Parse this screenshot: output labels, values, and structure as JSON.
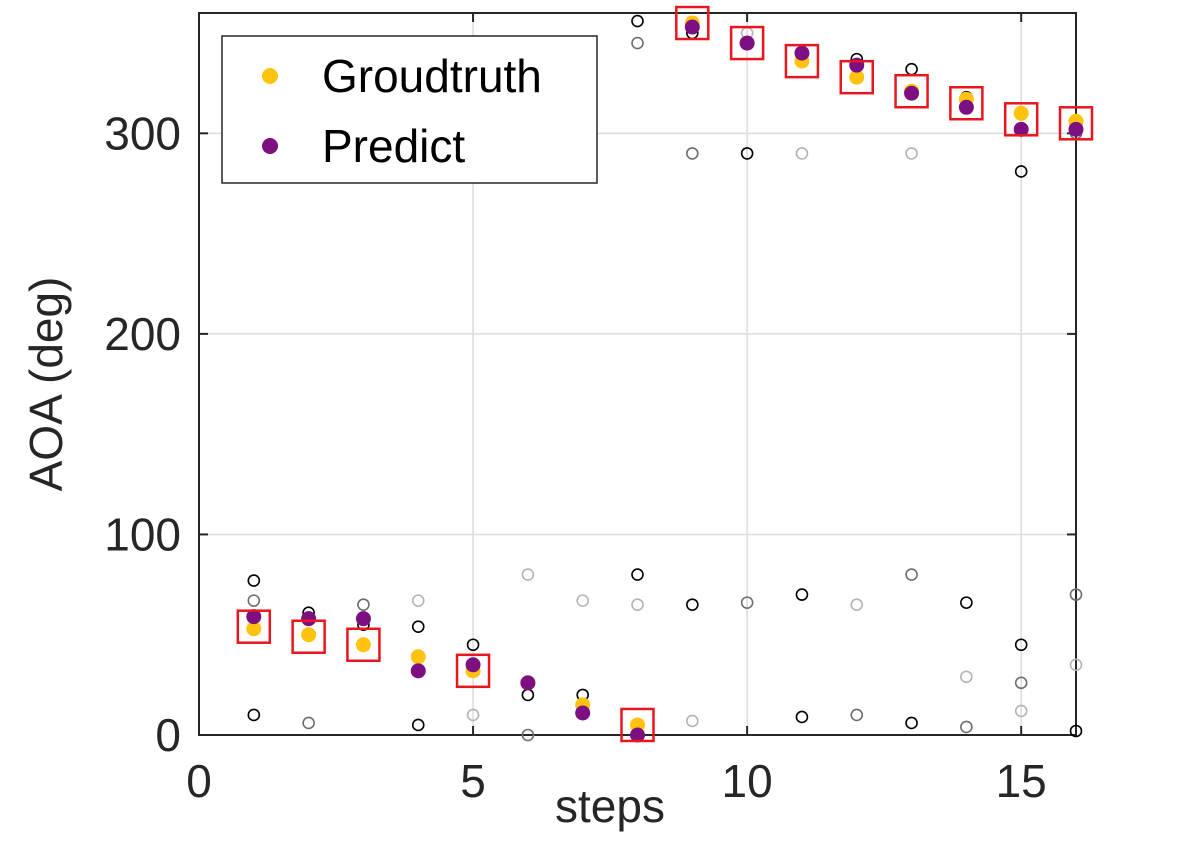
{
  "chart_data": {
    "type": "scatter",
    "xlabel": "steps",
    "ylabel": "AOA (deg)",
    "xlim": [
      0,
      16
    ],
    "ylim": [
      0,
      360
    ],
    "xticks": [
      0,
      5,
      10,
      15
    ],
    "yticks": [
      0,
      100,
      200,
      300
    ],
    "x_tick_labels": [
      "0",
      "5",
      "10",
      "15"
    ],
    "y_tick_labels": [
      "0",
      "100",
      "200",
      "300"
    ],
    "grid": true,
    "legend": {
      "position": "top-left",
      "entries": [
        {
          "label": "Groudtruth",
          "color": "#FFC20E"
        },
        {
          "label": "Predict",
          "color": "#7E0F80"
        }
      ]
    },
    "series": [
      {
        "name": "Groudtruth",
        "marker": "filled-circle",
        "color": "#FFC20E",
        "x": [
          1,
          2,
          3,
          4,
          5,
          6,
          7,
          8,
          9,
          10,
          11,
          12,
          13,
          14,
          15,
          16
        ],
        "y": [
          53,
          50,
          45,
          39,
          32,
          26,
          15,
          5,
          355,
          345,
          336,
          328,
          321,
          317,
          310,
          306
        ]
      },
      {
        "name": "Predict",
        "marker": "filled-circle",
        "color": "#7E0F80",
        "x": [
          1,
          2,
          3,
          4,
          5,
          6,
          7,
          8,
          9,
          10,
          11,
          12,
          13,
          14,
          15,
          16
        ],
        "y": [
          59,
          58,
          58,
          32,
          35,
          26,
          11,
          0,
          353,
          345,
          340,
          334,
          320,
          313,
          302,
          302
        ]
      },
      {
        "marker": "open-square",
        "color": "#E8161D",
        "x": [
          1,
          2,
          3,
          5,
          8,
          9,
          10,
          11,
          12,
          13,
          14,
          15,
          16
        ],
        "y": [
          54,
          49,
          45,
          32,
          5,
          355,
          345,
          336,
          328,
          321,
          315,
          307,
          305
        ]
      },
      {
        "marker": "open-circle",
        "color": "#000000",
        "x": [
          1,
          1,
          2,
          3,
          4,
          4,
          5,
          6,
          7,
          8,
          8,
          9,
          9,
          10,
          11,
          11,
          12,
          13,
          13,
          14,
          14,
          15,
          15,
          16
        ],
        "y": [
          77,
          10,
          61,
          55,
          54,
          5,
          45,
          20,
          20,
          80,
          356,
          350,
          65,
          290,
          70,
          9,
          337,
          332,
          6,
          318,
          66,
          281,
          45,
          2
        ]
      },
      {
        "marker": "open-circle",
        "color": "#6E6E6E",
        "x": [
          1,
          2,
          3,
          6,
          8,
          9,
          10,
          12,
          13,
          14,
          15,
          16,
          16
        ],
        "y": [
          67,
          6,
          65,
          0,
          345,
          290,
          66,
          10,
          80,
          4,
          26,
          70,
          300
        ]
      },
      {
        "marker": "open-circle",
        "color": "#B4B4B4",
        "x": [
          4,
          5,
          6,
          7,
          8,
          9,
          10,
          11,
          12,
          13,
          14,
          15,
          16
        ],
        "y": [
          67,
          10,
          80,
          67,
          65,
          7,
          350,
          290,
          65,
          290,
          29,
          12,
          35
        ]
      }
    ]
  }
}
